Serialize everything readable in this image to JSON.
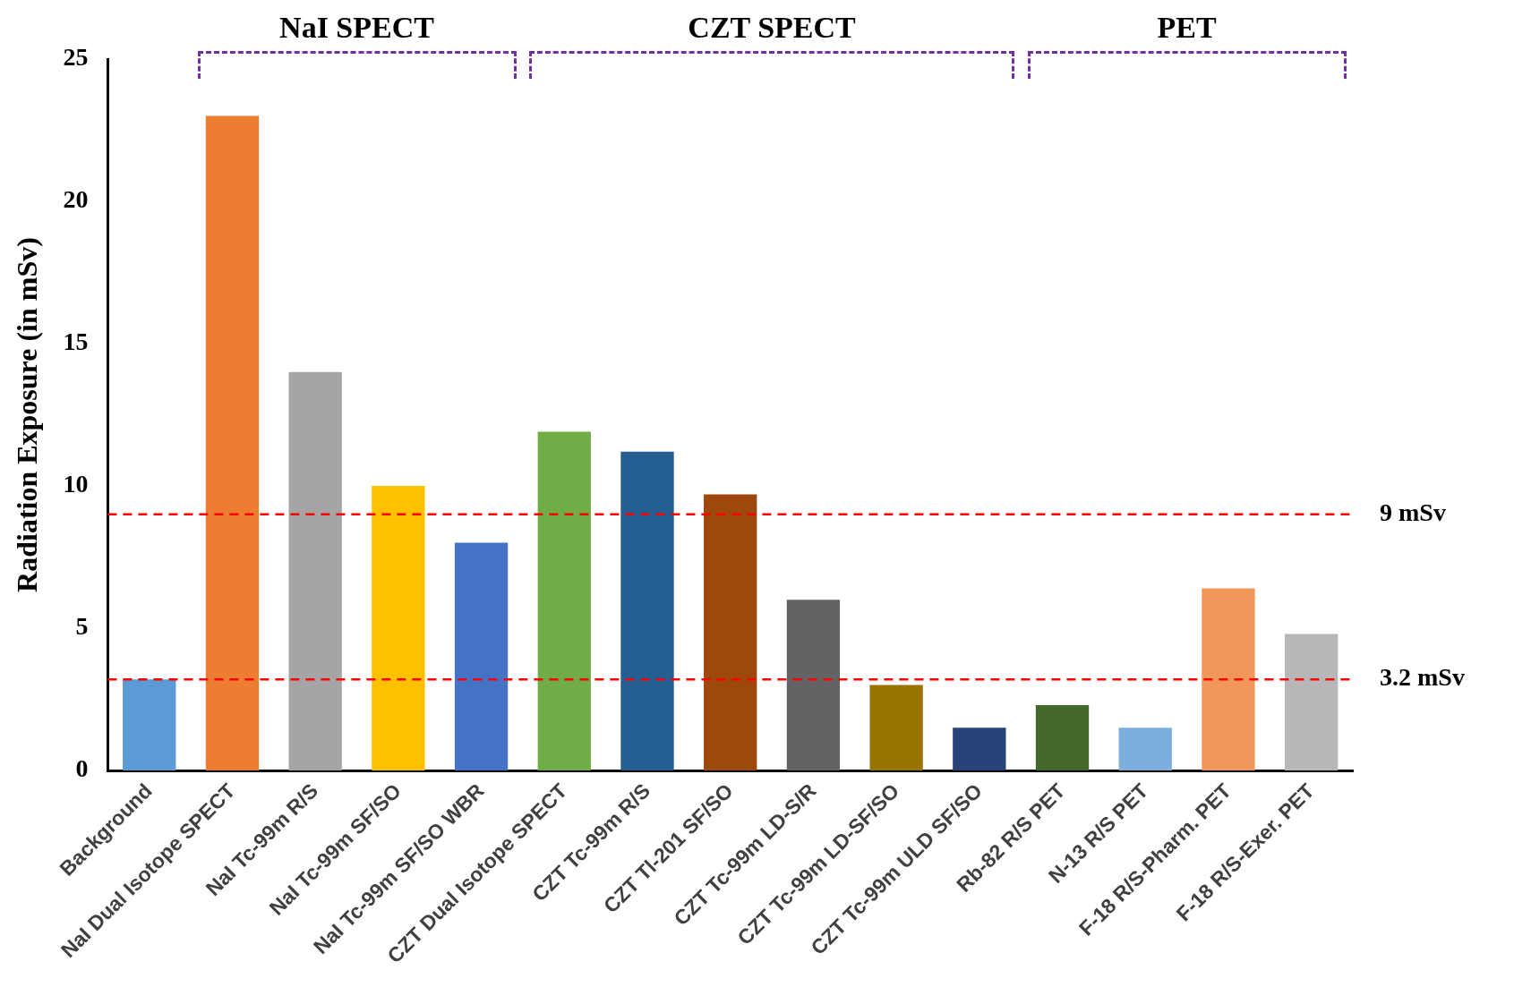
{
  "chart_data": {
    "type": "bar",
    "ylabel": "Radiation Exposure (in mSv)",
    "categories": [
      "Background",
      "NaI Dual Isotope SPECT",
      "NaI Tc-99m R/S",
      "NaI Tc-99m SF/SO",
      "NaI Tc-99m SF/SO WBR",
      "CZT Dual Isotope SPECT",
      "CZT Tc-99m R/S",
      "CZT Tl-201 SF/SO",
      "CZT Tc-99m LD-S/R",
      "CZT Tc-99m LD-SF/SO",
      "CZT Tc-99m ULD SF/SO",
      "Rb-82 R/S PET",
      "N-13 R/S PET",
      "F-18 R/S-Pharm. PET",
      "F-18 R/S-Exer. PET"
    ],
    "values": [
      3.2,
      23,
      14,
      10,
      8,
      11.9,
      11.2,
      9.7,
      6,
      3,
      1.5,
      2.3,
      1.5,
      6.4,
      4.8
    ],
    "colors": [
      "#5b9bd5",
      "#ed7d31",
      "#a5a5a5",
      "#ffc000",
      "#4472c4",
      "#70ad47",
      "#255e91",
      "#9e480e",
      "#636363",
      "#997300",
      "#264478",
      "#43682b",
      "#7cafdd",
      "#f1975a",
      "#b7b7b7"
    ],
    "ylim": [
      0,
      25
    ],
    "yticks": [
      0,
      5,
      10,
      15,
      20,
      25
    ],
    "grid": false,
    "legend": false,
    "ref_lines": [
      {
        "axis": "y",
        "value": 9,
        "label": "9 mSv",
        "color": "#ff0000",
        "line_style": "dashed"
      },
      {
        "axis": "y",
        "value": 3.2,
        "label": "3.2 mSv",
        "color": "#ff0000",
        "line_style": "dashed"
      }
    ],
    "annotations": [
      "NaI SPECT",
      "CZT SPECT",
      "PET"
    ]
  }
}
